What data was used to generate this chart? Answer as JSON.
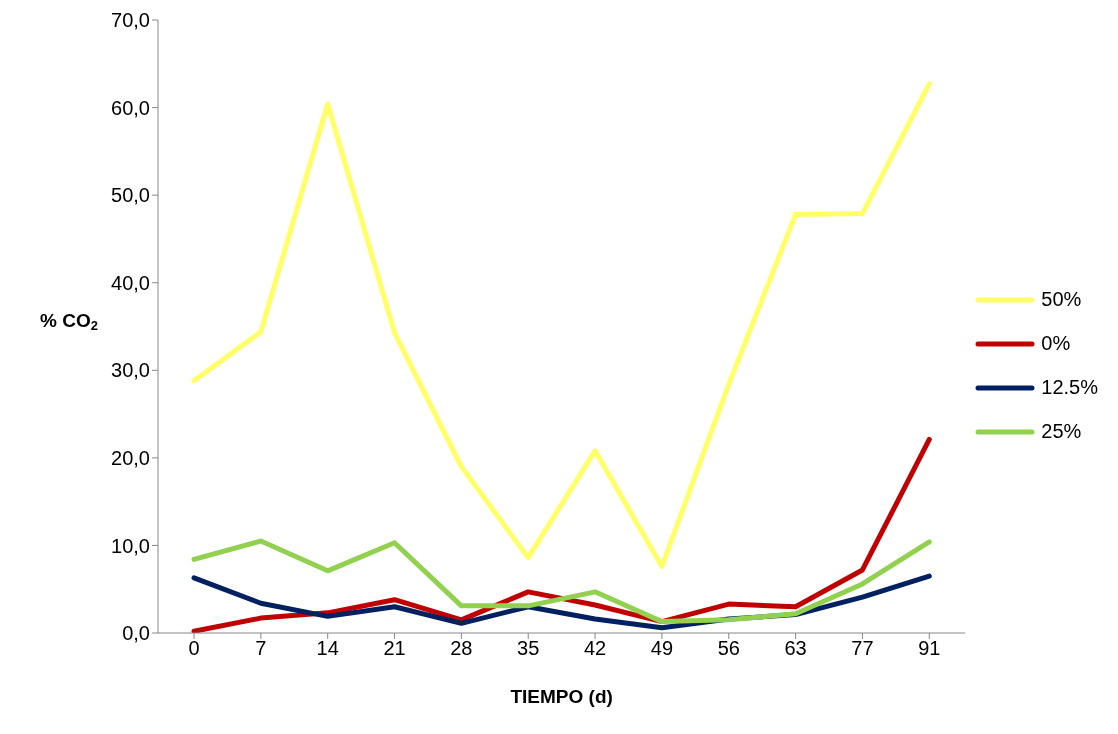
{
  "chart_data": {
    "type": "line",
    "xlabel": "TIEMPO (d)",
    "ylabel": "% CO$_{2}$",
    "categories": [
      "0",
      "7",
      "14",
      "21",
      "28",
      "35",
      "42",
      "49",
      "56",
      "63",
      "77",
      "91"
    ],
    "series": [
      {
        "name": "50%",
        "color": "#ffff66",
        "values": [
          28.8,
          34.4,
          60.4,
          34.3,
          19.0,
          8.6,
          20.8,
          7.6,
          28.4,
          47.8,
          47.9,
          62.7
        ]
      },
      {
        "name": "0%",
        "color": "#c00000",
        "values": [
          0.2,
          1.7,
          2.3,
          3.8,
          1.5,
          4.7,
          3.2,
          1.3,
          3.3,
          3.0,
          7.2,
          22.1
        ]
      },
      {
        "name": "12.5%",
        "color": "#002060",
        "values": [
          6.3,
          3.4,
          1.9,
          3.0,
          1.1,
          3.0,
          1.6,
          0.6,
          1.6,
          2.1,
          4.1,
          6.5
        ]
      },
      {
        "name": "25%",
        "color": "#92d050",
        "values": [
          8.4,
          10.5,
          7.1,
          10.3,
          3.1,
          3.1,
          4.7,
          1.3,
          1.5,
          2.2,
          5.6,
          10.4
        ]
      }
    ],
    "ylim": [
      0,
      70
    ],
    "yticks": [
      {
        "value": 0,
        "label": "0,0"
      },
      {
        "value": 10,
        "label": "10,0"
      },
      {
        "value": 20,
        "label": "20,0"
      },
      {
        "value": 30,
        "label": "30,0"
      },
      {
        "value": 40,
        "label": "40,0"
      },
      {
        "value": 50,
        "label": "50,0"
      },
      {
        "value": 60,
        "label": "60,0"
      },
      {
        "value": 70,
        "label": "70,0"
      }
    ],
    "grid": false,
    "legend": "right",
    "marker": "none",
    "line_style": "solid"
  }
}
